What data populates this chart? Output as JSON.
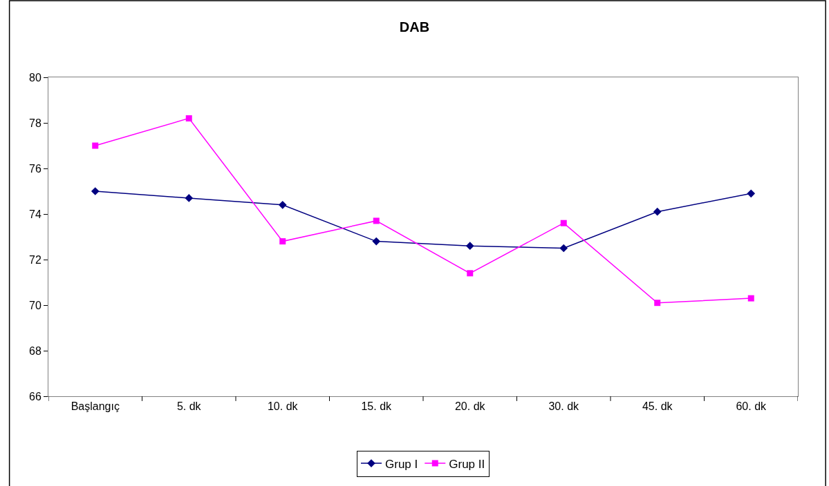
{
  "chart_data": {
    "type": "line",
    "title": "DAB",
    "categories": [
      "Başlangıç",
      "5. dk",
      "10. dk",
      "15. dk",
      "20. dk",
      "30. dk",
      "45. dk",
      "60. dk"
    ],
    "series": [
      {
        "name": "Grup I",
        "color": "#000080",
        "marker": "diamond",
        "values": [
          75.0,
          74.7,
          74.4,
          72.8,
          72.6,
          72.5,
          74.1,
          74.9
        ]
      },
      {
        "name": "Grup II",
        "color": "#ff00ff",
        "marker": "square",
        "values": [
          77.0,
          78.2,
          72.8,
          73.7,
          71.4,
          73.6,
          70.1,
          70.3
        ]
      }
    ],
    "ylim": [
      66,
      80
    ],
    "yticks": [
      66,
      68,
      70,
      72,
      74,
      76,
      78,
      80
    ],
    "grid": false,
    "legend": "bottom"
  }
}
